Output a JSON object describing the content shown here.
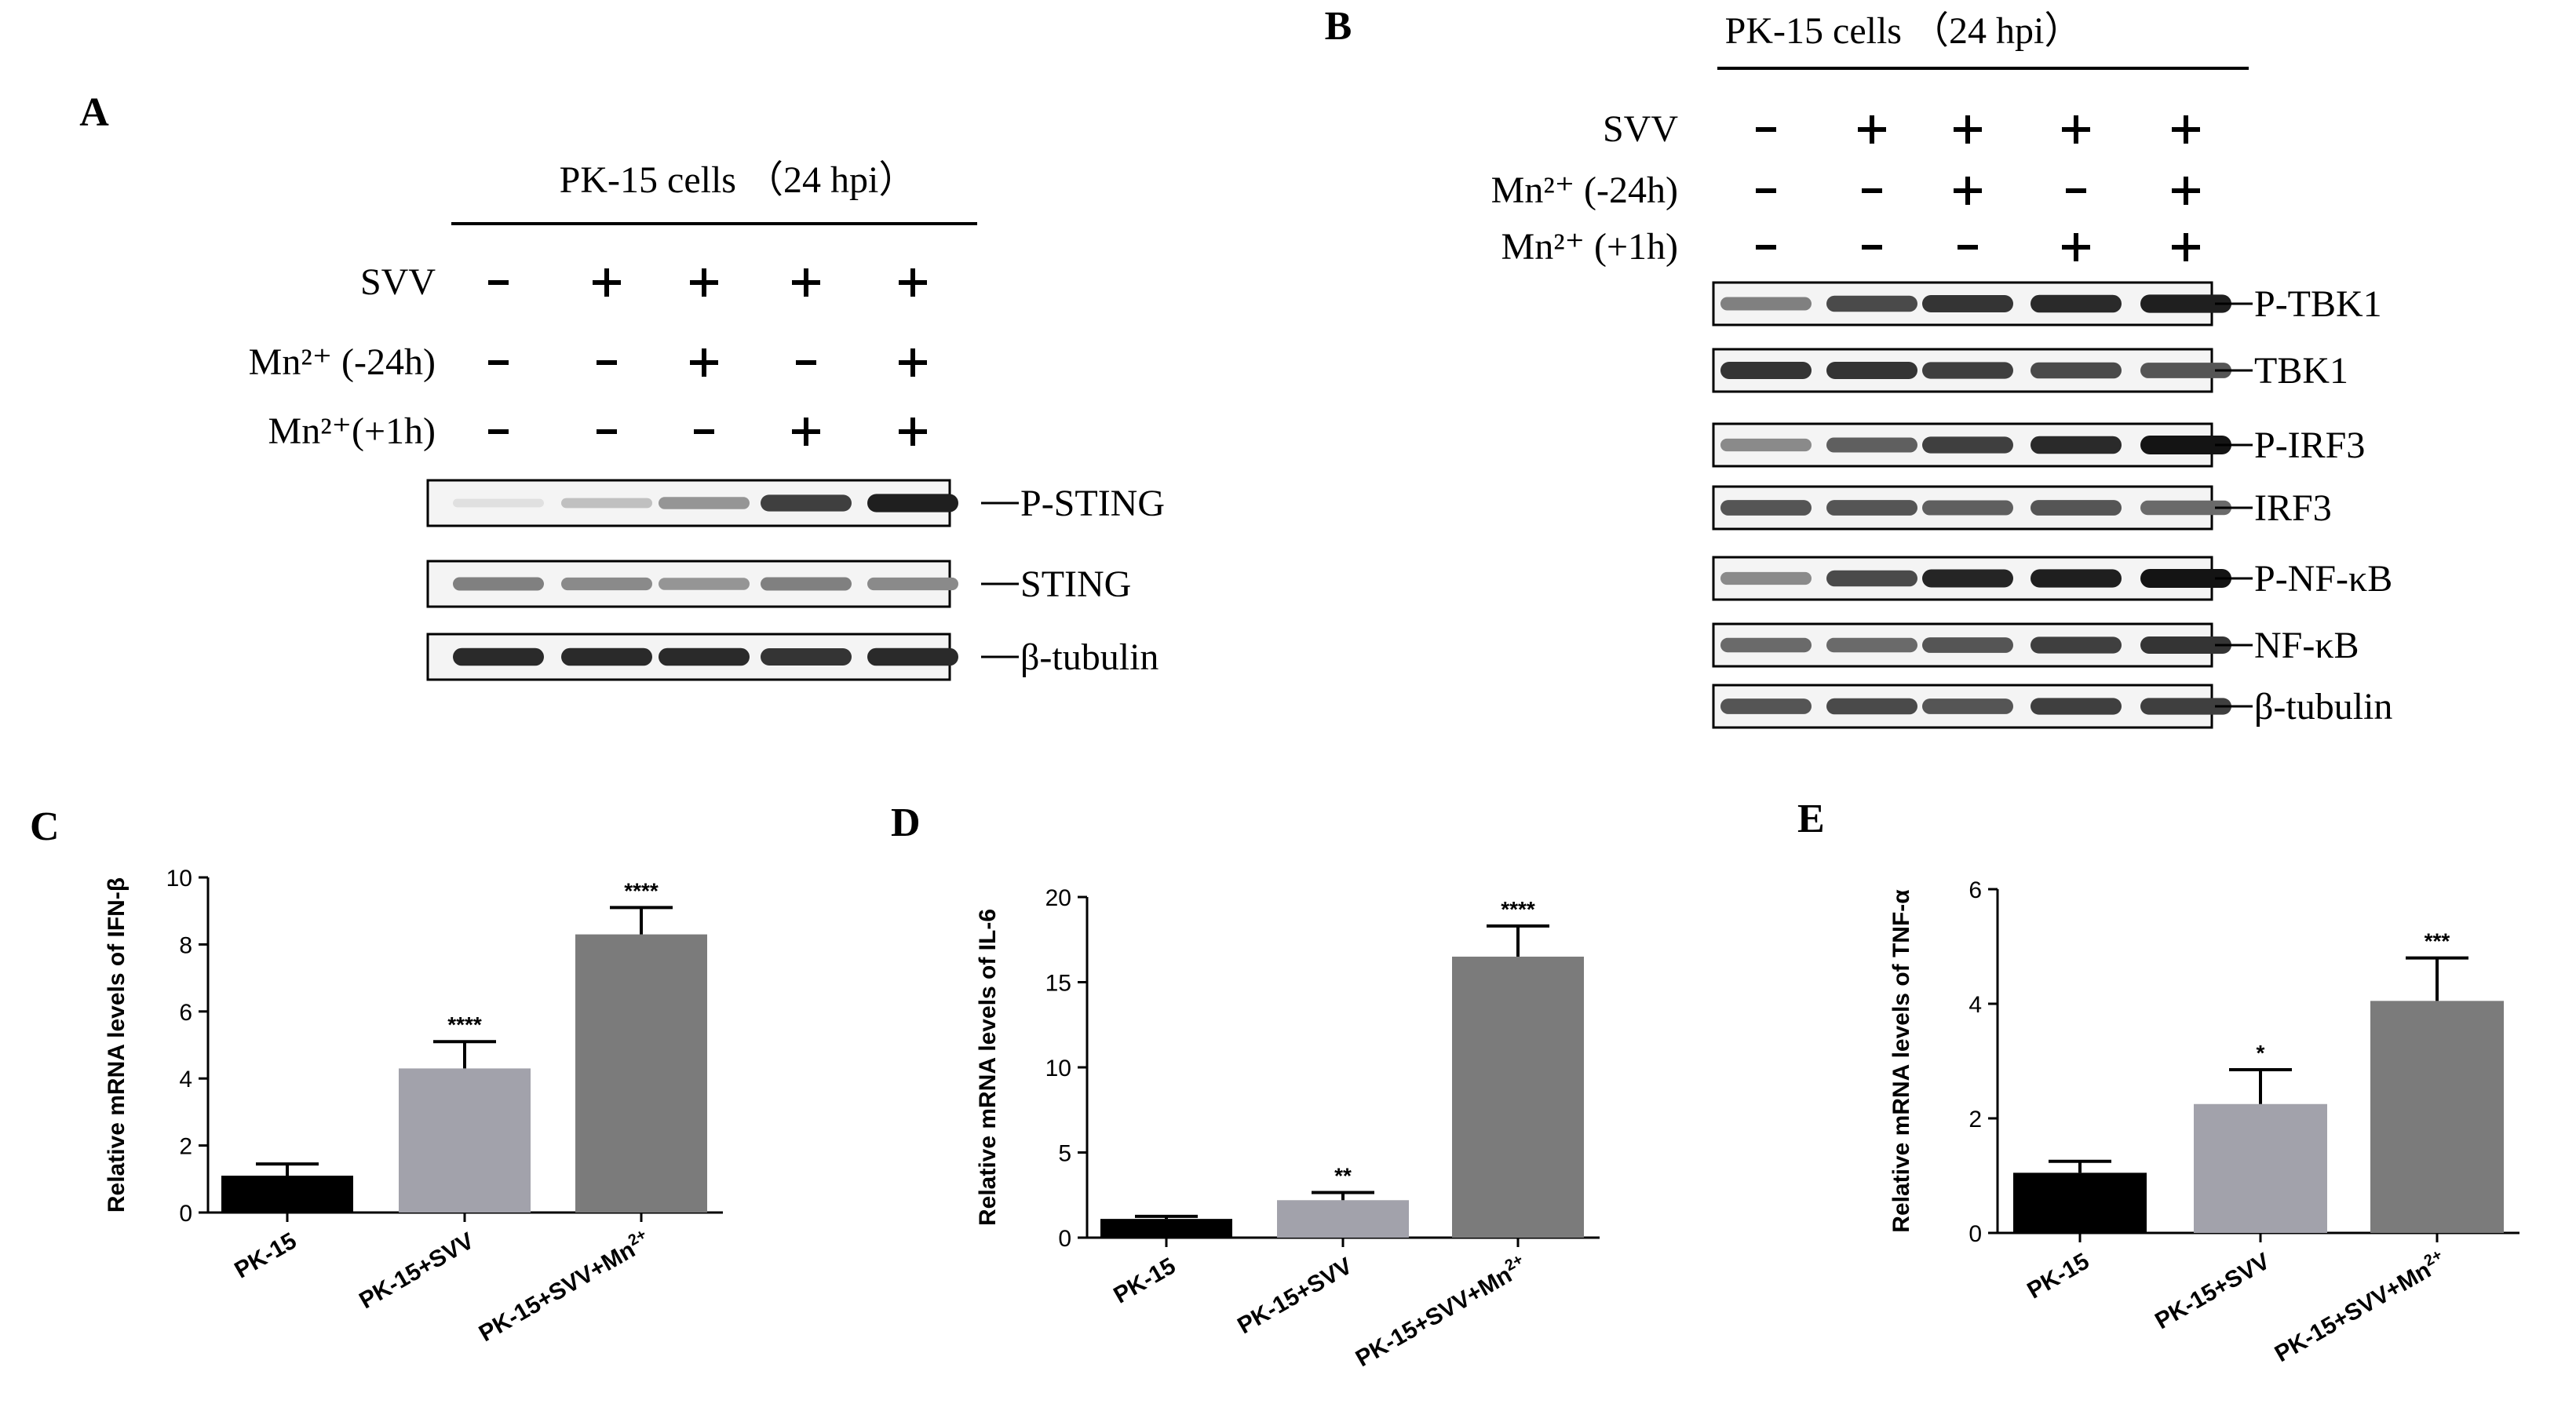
{
  "blots": [
    {
      "panel": "A",
      "header": "PK-15 cells （24 hpi）",
      "conditions": [
        {
          "label": "SVV",
          "marks": [
            "-",
            "+",
            "+",
            "+",
            "+"
          ]
        },
        {
          "label": "Mn²⁺ (-24h)",
          "marks": [
            "-",
            "-",
            "+",
            "-",
            "+"
          ]
        },
        {
          "label": "Mn²⁺(+1h)",
          "marks": [
            "-",
            "-",
            "-",
            "+",
            "+"
          ]
        }
      ],
      "bands": [
        {
          "label": "P-STING",
          "intensity": [
            0.05,
            0.2,
            0.4,
            0.8,
            0.95
          ]
        },
        {
          "label": "STING",
          "intensity": [
            0.5,
            0.45,
            0.4,
            0.5,
            0.45
          ]
        },
        {
          "label": "β-tubulin",
          "intensity": [
            0.9,
            0.9,
            0.9,
            0.85,
            0.9
          ]
        }
      ]
    },
    {
      "panel": "B",
      "header": "PK-15 cells （24 hpi）",
      "conditions": [
        {
          "label": "SVV",
          "marks": [
            "-",
            "+",
            "+",
            "+",
            "+"
          ]
        },
        {
          "label": "Mn²⁺ (-24h)",
          "marks": [
            "-",
            "-",
            "+",
            "-",
            "+"
          ]
        },
        {
          "label": "Mn²⁺ (+1h)",
          "marks": [
            "-",
            "-",
            "-",
            "+",
            "+"
          ]
        }
      ],
      "bands": [
        {
          "label": "P-TBK1",
          "intensity": [
            0.5,
            0.75,
            0.85,
            0.9,
            0.95
          ]
        },
        {
          "label": "TBK1",
          "intensity": [
            0.85,
            0.85,
            0.8,
            0.75,
            0.7
          ]
        },
        {
          "label": "P-IRF3",
          "intensity": [
            0.45,
            0.65,
            0.8,
            0.9,
            1.0
          ]
        },
        {
          "label": "IRF3",
          "intensity": [
            0.7,
            0.7,
            0.65,
            0.7,
            0.6
          ]
        },
        {
          "label": "P-NF-κB",
          "intensity": [
            0.45,
            0.75,
            0.92,
            0.95,
            1.0
          ]
        },
        {
          "label": "NF-κB",
          "intensity": [
            0.6,
            0.6,
            0.7,
            0.8,
            0.85
          ]
        },
        {
          "label": "β-tubulin",
          "intensity": [
            0.7,
            0.75,
            0.7,
            0.8,
            0.8
          ]
        }
      ]
    }
  ],
  "chart_data": [
    {
      "panel": "C",
      "type": "bar",
      "categories": [
        "PK-15",
        "PK-15+SVV",
        "PK-15+SVV+Mn2+"
      ],
      "values": [
        1.1,
        4.3,
        8.3
      ],
      "error": [
        0.35,
        0.8,
        0.8
      ],
      "significance": [
        "",
        "****",
        "****"
      ],
      "ylabel": "Relative mRNA levels of IFN-β",
      "ylim": [
        0,
        10
      ],
      "yticks": [
        0,
        2,
        4,
        6,
        8,
        10
      ],
      "colors": [
        "#000000",
        "#a2a2ab",
        "#7b7b7b"
      ]
    },
    {
      "panel": "D",
      "type": "bar",
      "categories": [
        "PK-15",
        "PK-15+SVV",
        "PK-15+SVV+Mn2+"
      ],
      "values": [
        1.1,
        2.2,
        16.5
      ],
      "error": [
        0.15,
        0.45,
        1.8
      ],
      "significance": [
        "",
        "**",
        "****"
      ],
      "ylabel": "Relative mRNA levels of IL-6",
      "ylim": [
        0,
        20
      ],
      "yticks": [
        0,
        5,
        10,
        15,
        20
      ],
      "colors": [
        "#000000",
        "#a2a2ab",
        "#7b7b7b"
      ]
    },
    {
      "panel": "E",
      "type": "bar",
      "categories": [
        "PK-15",
        "PK-15+SVV",
        "PK-15+SVV+Mn2+"
      ],
      "values": [
        1.05,
        2.25,
        4.05
      ],
      "error": [
        0.2,
        0.6,
        0.75
      ],
      "significance": [
        "",
        "*",
        "***"
      ],
      "ylabel": "Relative mRNA levels of TNF-α",
      "ylim": [
        0,
        6
      ],
      "yticks": [
        0,
        2,
        4,
        6
      ],
      "colors": [
        "#000000",
        "#a2a2ab",
        "#7b7b7b"
      ]
    }
  ]
}
